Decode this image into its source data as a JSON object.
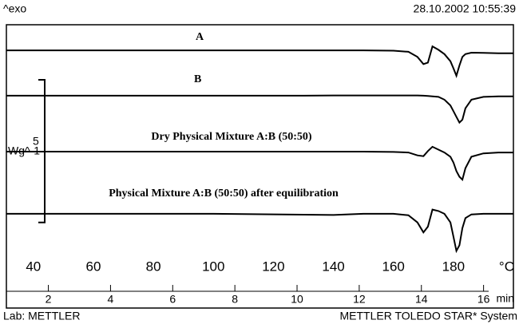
{
  "chart_data": {
    "type": "line",
    "top_left": "^exo",
    "timestamp": "28.10.2002 10:55:39",
    "footer_left": "Lab: METTLER",
    "footer_right": "METTLER TOLEDO STAR* System",
    "xlabel": "°C",
    "xlim": [
      31,
      200
    ],
    "xticks": [
      40,
      60,
      80,
      100,
      120,
      140,
      160,
      180
    ],
    "x2label": "min",
    "x2lim": [
      0.65,
      16.96
    ],
    "x2ticks": [
      2,
      4,
      6,
      8,
      10,
      12,
      14,
      16
    ],
    "ylim": [
      0,
      8
    ],
    "scale_bar": {
      "value": 5,
      "unit": "Wg^-1"
    },
    "x": [
      31,
      60,
      100,
      130,
      140,
      150,
      160,
      165,
      168,
      170,
      171.5,
      173,
      175,
      177,
      179,
      180,
      181,
      182,
      183,
      184,
      186,
      190,
      195,
      200
    ],
    "series": [
      {
        "name": "A",
        "color": "#000000",
        "values": [
          7.13,
          7.13,
          7.13,
          7.13,
          7.13,
          7.13,
          7.12,
          7.08,
          6.9,
          6.65,
          6.7,
          7.27,
          7.15,
          7.0,
          6.75,
          6.5,
          6.24,
          6.6,
          6.9,
          7.0,
          7.05,
          7.04,
          7.03,
          7.03
        ]
      },
      {
        "name": "B",
        "color": "#000000",
        "values": [
          5.54,
          5.54,
          5.54,
          5.54,
          5.55,
          5.55,
          5.55,
          5.55,
          5.55,
          5.54,
          5.53,
          5.52,
          5.5,
          5.4,
          5.2,
          5.0,
          4.8,
          4.6,
          4.7,
          5.1,
          5.4,
          5.5,
          5.52,
          5.52
        ]
      },
      {
        "name": "Dry Physical Mixture A:B (50:50)",
        "color": "#000000",
        "values": [
          3.58,
          3.58,
          3.58,
          3.58,
          3.58,
          3.58,
          3.57,
          3.55,
          3.45,
          3.42,
          3.6,
          3.75,
          3.65,
          3.55,
          3.4,
          3.2,
          2.9,
          2.7,
          2.6,
          3.0,
          3.4,
          3.52,
          3.55,
          3.55
        ]
      },
      {
        "name": "Physical Mixture A:B (50:50) after equilibration",
        "color": "#000000",
        "values": [
          1.4,
          1.4,
          1.4,
          1.37,
          1.36,
          1.4,
          1.4,
          1.35,
          1.1,
          0.75,
          0.95,
          1.55,
          1.5,
          1.4,
          1.1,
          0.6,
          0.1,
          0.3,
          0.9,
          1.25,
          1.38,
          1.4,
          1.4,
          1.4
        ]
      }
    ]
  }
}
